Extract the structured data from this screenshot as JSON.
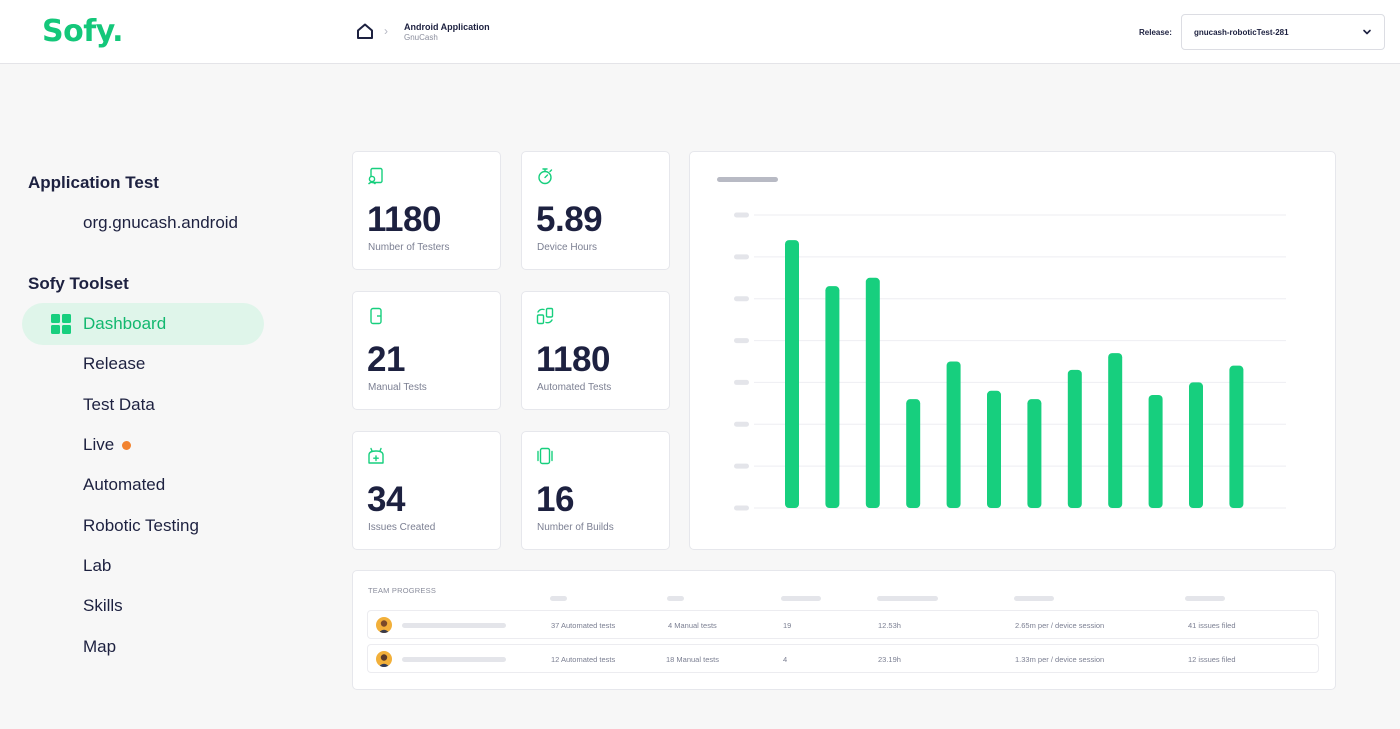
{
  "brand": {
    "logo": "Sofy.",
    "accent": "#14c77a"
  },
  "breadcrumb": {
    "title": "Android Application",
    "subtitle": "GnuCash"
  },
  "release": {
    "label": "Release:",
    "value": "gnucash-roboticTest-281"
  },
  "sidebar": {
    "app_heading": "Application Test",
    "app_name": "org.gnucash.android",
    "toolset_heading": "Sofy Toolset",
    "items": [
      {
        "label": "Dashboard",
        "active": true
      },
      {
        "label": "Release"
      },
      {
        "label": "Test Data"
      },
      {
        "label": "Live",
        "indicator": "#f2832f"
      },
      {
        "label": "Automated"
      },
      {
        "label": "Robotic Testing"
      },
      {
        "label": "Lab"
      },
      {
        "label": "Skills"
      },
      {
        "label": "Map"
      }
    ]
  },
  "stats": [
    {
      "value": "1180",
      "label": "Number of Testers",
      "icon": "tester-icon"
    },
    {
      "value": "5.89",
      "label": "Device Hours",
      "icon": "stopwatch-icon"
    },
    {
      "value": "21",
      "label": "Manual Tests",
      "icon": "phone-icon"
    },
    {
      "value": "1180",
      "label": "Automated Tests",
      "icon": "automation-icon"
    },
    {
      "value": "34",
      "label": "Issues Created",
      "icon": "bug-icon"
    },
    {
      "value": "16",
      "label": "Number of Builds",
      "icon": "devices-icon"
    }
  ],
  "chart_data": {
    "type": "bar",
    "title": "",
    "xlabel": "",
    "ylabel": "",
    "categories": [
      "",
      "",
      "",
      "",
      "",
      "",
      "",
      "",
      "",
      "",
      "",
      ""
    ],
    "values": [
      64,
      53,
      55,
      26,
      35,
      28,
      26,
      33,
      37,
      27,
      30,
      34
    ],
    "ylim": [
      0,
      70
    ],
    "grid": true,
    "bar_color": "#17cf7e"
  },
  "team": {
    "title": "TEAM PROGRESS",
    "rows": [
      {
        "automated": "37 Automated tests",
        "manual": "4 Manual tests",
        "count": "19",
        "hours": "12.53h",
        "rate": "2.65m per / device session",
        "issues": "41 issues filed"
      },
      {
        "automated": "12 Automated tests",
        "manual": "18 Manual tests",
        "count": "4",
        "hours": "23.19h",
        "rate": "1.33m per / device session",
        "issues": "12 issues filed"
      }
    ]
  }
}
